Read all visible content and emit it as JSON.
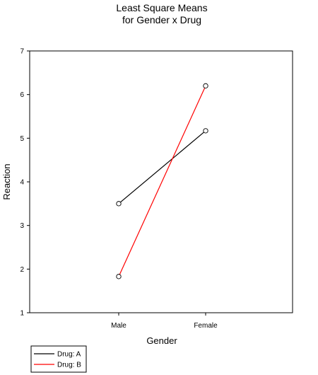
{
  "chart_data": {
    "type": "line",
    "title": [
      "Least Square Means",
      "for Gender x Drug"
    ],
    "xlabel": "Gender",
    "ylabel": "Reaction",
    "categories": [
      "Male",
      "Female"
    ],
    "ylim": [
      1,
      7
    ],
    "yticks": [
      "1",
      "2",
      "3",
      "4",
      "5",
      "6",
      "7"
    ],
    "grid": false,
    "legend_position": "bottom-left",
    "series": [
      {
        "name": "Drug: A",
        "color": "#000000",
        "values": [
          3.5,
          5.17
        ]
      },
      {
        "name": "Drug: B",
        "color": "#ff0000",
        "values": [
          1.83,
          6.2
        ]
      }
    ]
  }
}
